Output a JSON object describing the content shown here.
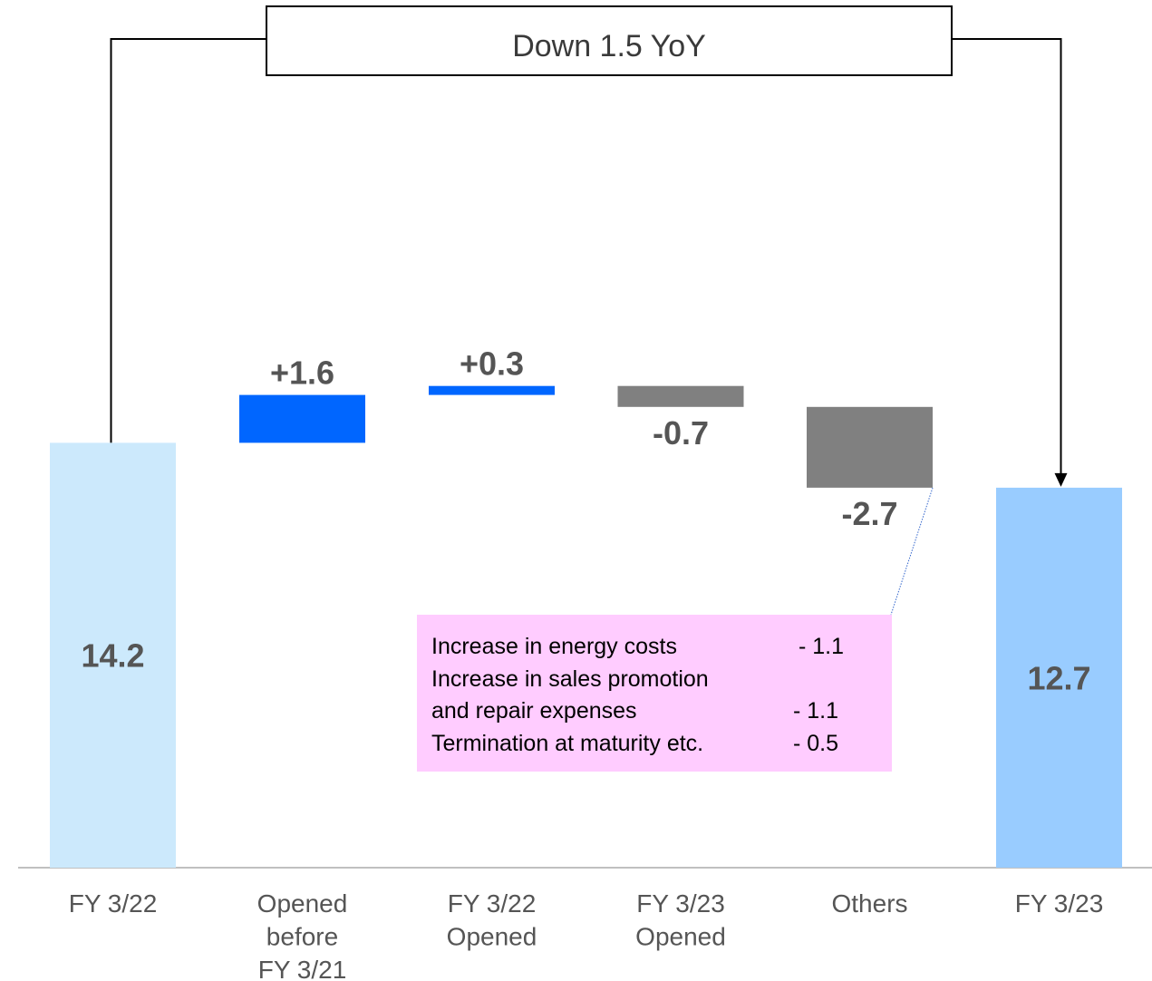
{
  "chart_data": {
    "type": "waterfall",
    "categories": [
      [
        "FY 3/22"
      ],
      [
        "Opened",
        "before",
        "FY 3/21"
      ],
      [
        "FY 3/22",
        "Opened"
      ],
      [
        "FY 3/23",
        "Opened"
      ],
      [
        "Others"
      ],
      [
        "FY 3/23"
      ]
    ],
    "steps": [
      {
        "kind": "total",
        "value": 14.2,
        "label": "14.2"
      },
      {
        "kind": "delta",
        "value": 1.6,
        "label": "+1.6"
      },
      {
        "kind": "delta",
        "value": 0.3,
        "label": "+0.3"
      },
      {
        "kind": "delta",
        "value": -0.7,
        "label": "-0.7"
      },
      {
        "kind": "delta",
        "value": -2.7,
        "label": "-2.7"
      },
      {
        "kind": "total",
        "value": 12.7,
        "label": "12.7"
      }
    ],
    "banner": "Down 1.5 YoY",
    "colors": {
      "start_total": "#cce9fc",
      "end_total": "#99ccff",
      "increase": "#0066ff",
      "decrease": "#808080",
      "label": "#555555",
      "axis": "#c0c0c0",
      "note_bg": "#ffccff"
    }
  },
  "note": {
    "rows": [
      {
        "label": "Increase in energy costs",
        "value": "- 1.1"
      },
      {
        "label": "Increase in sales promotion",
        "value": ""
      },
      {
        "label": "and repair expenses",
        "value": "- 1.1"
      },
      {
        "label": "Termination at maturity etc.",
        "value": "- 0.5"
      }
    ]
  }
}
